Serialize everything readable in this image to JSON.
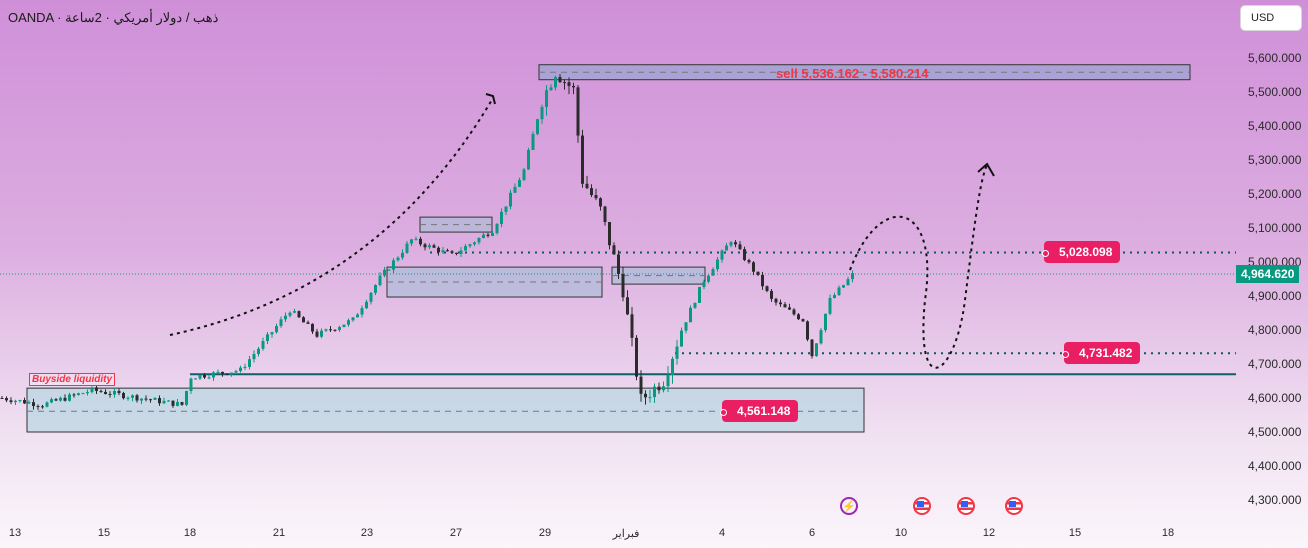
{
  "header": {
    "title": "OANDA · ذهب / دولار أمريكي · 2ساعة",
    "currency_button": "USD"
  },
  "price_axis": {
    "ticks": [
      "5,600.000",
      "5,500.000",
      "5,400.000",
      "5,300.000",
      "5,200.000",
      "5,100.000",
      "5,000.000",
      "4,900.000",
      "4,800.000",
      "4,700.000",
      "4,600.000",
      "4,500.000",
      "4,400.000",
      "4,300.000"
    ],
    "tick_values": [
      5600,
      5500,
      5400,
      5300,
      5200,
      5100,
      5000,
      4900,
      4800,
      4700,
      4600,
      4500,
      4400,
      4300
    ]
  },
  "time_axis": {
    "ticks": [
      "13",
      "15",
      "18",
      "21",
      "23",
      "27",
      "29",
      "فبراير",
      "4",
      "6",
      "10",
      "12",
      "15",
      "18"
    ]
  },
  "last_price": {
    "label": "4,964.620",
    "value": 4964.62,
    "color": "#089981"
  },
  "levels": [
    {
      "label": "5,028.098",
      "value": 5028.098
    },
    {
      "label": "4,731.482",
      "value": 4731.482
    },
    {
      "label": "4,561.148",
      "value": 4561.148
    }
  ],
  "zones": {
    "sell": {
      "label": "sell 5,536.162 - 5,580.214",
      "low": 5536.162,
      "high": 5580.214
    },
    "buyside": {
      "label": "Buyside liquidity",
      "low": 4500,
      "high": 4629,
      "mid": 4561.148
    },
    "support_line": 4670
  },
  "colors": {
    "up": "#089981",
    "down": "#2b2b2b",
    "tag": "#e91e63",
    "sell": "#f23645"
  },
  "events": [
    "flash-event",
    "us-event",
    "us-event",
    "us-event"
  ],
  "chart_data": {
    "type": "candlestick",
    "symbol": "XAUUSD",
    "timeframe": "2h",
    "ylim": [
      4270,
      5640
    ],
    "price_path": [
      [
        0,
        4600
      ],
      [
        9,
        4580
      ],
      [
        20,
        4623
      ],
      [
        40,
        4580
      ],
      [
        42,
        4662
      ],
      [
        53,
        4682
      ],
      [
        64,
        4859
      ],
      [
        70,
        4785
      ],
      [
        78,
        4830
      ],
      [
        84,
        4953
      ],
      [
        91,
        5065
      ],
      [
        100,
        5020
      ],
      [
        109,
        5094
      ],
      [
        116,
        5270
      ],
      [
        120,
        5476
      ],
      [
        123,
        5560
      ],
      [
        127,
        5506
      ],
      [
        129,
        5241
      ],
      [
        133,
        5153
      ],
      [
        138,
        4918
      ],
      [
        142,
        4594
      ],
      [
        147,
        4653
      ],
      [
        151,
        4800
      ],
      [
        156,
        4947
      ],
      [
        162,
        5065
      ],
      [
        167,
        4976
      ],
      [
        171,
        4888
      ],
      [
        178,
        4830
      ],
      [
        180,
        4726
      ],
      [
        184,
        4888
      ],
      [
        189,
        4962
      ]
    ]
  }
}
